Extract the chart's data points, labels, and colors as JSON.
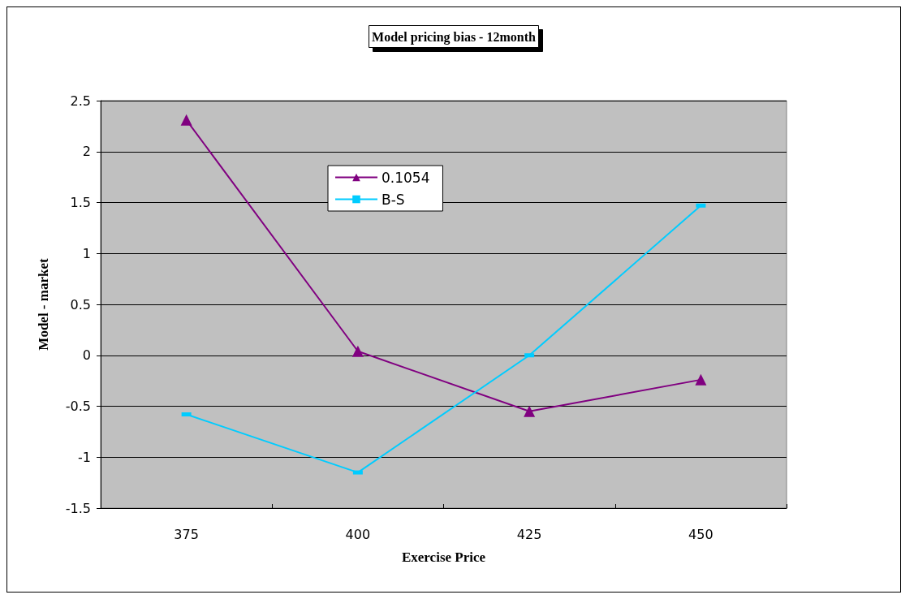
{
  "chart_data": {
    "type": "line",
    "title": "Model pricing bias - 12month",
    "xlabel": "Exercise Price",
    "ylabel": "Model - market",
    "categories": [
      "375",
      "400",
      "425",
      "450"
    ],
    "series": [
      {
        "name": "0.1054",
        "color": "#800080",
        "marker": "triangle",
        "values": [
          2.31,
          0.04,
          -0.55,
          -0.24
        ]
      },
      {
        "name": "B-S",
        "color": "#00ccff",
        "marker": "square",
        "values": [
          -0.58,
          -1.15,
          0.0,
          1.47
        ]
      }
    ],
    "ylim": [
      -1.5,
      2.5
    ],
    "yticks": [
      -1.5,
      -1,
      -0.5,
      0,
      0.5,
      1,
      1.5,
      2,
      2.5
    ],
    "grid": "y",
    "legend": "top left"
  }
}
